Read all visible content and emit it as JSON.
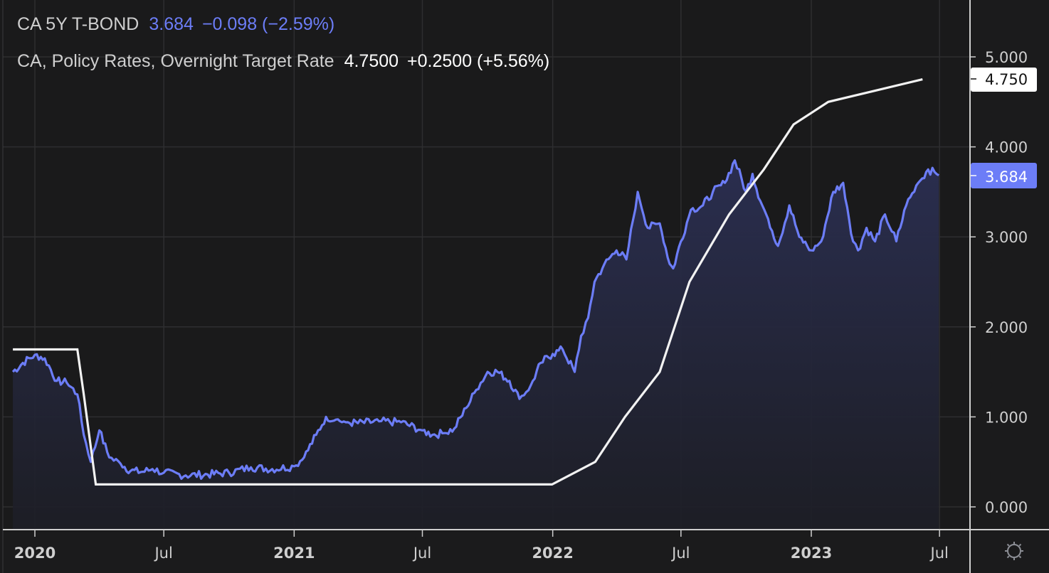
{
  "legend": {
    "bond": {
      "name": "CA 5Y T-BOND",
      "value": "3.684",
      "change": "−0.098 (−2.59%)",
      "color": "#6c7df7"
    },
    "policy": {
      "name": "CA, Policy Rates, Overnight Target Rate",
      "value": "4.7500",
      "change": "+0.2500 (+5.56%)",
      "color": "#ffffff"
    }
  },
  "price_tags": {
    "policy": {
      "label": "4.750",
      "bg": "#ffffff",
      "fg": "#131313"
    },
    "bond": {
      "label": "3.684",
      "bg": "#6c7df7",
      "fg": "#ffffff"
    }
  },
  "y_axis": {
    "ticks": [
      "5.000",
      "4.000",
      "3.000",
      "2.000",
      "1.000",
      "0.000"
    ]
  },
  "x_axis": {
    "ticks": [
      "2020",
      "Jul",
      "2021",
      "Jul",
      "2022",
      "Jul",
      "2023",
      "Jul"
    ]
  },
  "settings_icon": "gear-icon",
  "chart_data": {
    "type": "line",
    "title": "",
    "xlabel": "",
    "ylabel": "",
    "ylim": [
      -0.25,
      5.6
    ],
    "grid": true,
    "legend_position": "top-left",
    "x_ticks": [
      "2020",
      "Jul 2020",
      "2021",
      "Jul 2021",
      "2022",
      "Jul 2022",
      "2023",
      "Jul 2023"
    ],
    "y_ticks": [
      0,
      1,
      2,
      3,
      4,
      5
    ],
    "series": [
      {
        "name": "CA 5Y T-BOND",
        "color": "#6c7df7",
        "style": "area-line",
        "last_value": 3.684,
        "x": [
          "2019-12-01",
          "2019-12-15",
          "2020-01-01",
          "2020-01-15",
          "2020-02-01",
          "2020-02-15",
          "2020-03-01",
          "2020-03-10",
          "2020-03-20",
          "2020-04-01",
          "2020-04-15",
          "2020-05-01",
          "2020-05-15",
          "2020-06-01",
          "2020-06-15",
          "2020-07-01",
          "2020-08-01",
          "2020-09-01",
          "2020-10-01",
          "2020-11-01",
          "2020-12-01",
          "2021-01-01",
          "2021-01-15",
          "2021-02-01",
          "2021-02-15",
          "2021-03-01",
          "2021-03-15",
          "2021-04-01",
          "2021-05-01",
          "2021-06-01",
          "2021-07-01",
          "2021-07-15",
          "2021-08-01",
          "2021-08-15",
          "2021-09-01",
          "2021-09-15",
          "2021-10-01",
          "2021-10-15",
          "2021-11-01",
          "2021-11-15",
          "2021-12-01",
          "2021-12-15",
          "2022-01-01",
          "2022-01-15",
          "2022-02-01",
          "2022-02-10",
          "2022-02-20",
          "2022-03-01",
          "2022-03-15",
          "2022-04-01",
          "2022-04-15",
          "2022-05-01",
          "2022-05-15",
          "2022-06-01",
          "2022-06-15",
          "2022-06-20",
          "2022-07-01",
          "2022-07-15",
          "2022-08-01",
          "2022-08-15",
          "2022-09-01",
          "2022-09-15",
          "2022-10-01",
          "2022-10-10",
          "2022-10-21",
          "2022-11-01",
          "2022-11-15",
          "2022-12-01",
          "2022-12-15",
          "2023-01-01",
          "2023-01-15",
          "2023-02-01",
          "2023-02-15",
          "2023-03-01",
          "2023-03-08",
          "2023-03-20",
          "2023-04-01",
          "2023-04-15",
          "2023-05-01",
          "2023-05-15",
          "2023-06-01",
          "2023-06-15",
          "2023-06-30"
        ],
        "values": [
          1.5,
          1.6,
          1.69,
          1.65,
          1.4,
          1.38,
          1.25,
          0.8,
          0.5,
          0.85,
          0.55,
          0.48,
          0.4,
          0.39,
          0.42,
          0.38,
          0.35,
          0.36,
          0.38,
          0.44,
          0.42,
          0.45,
          0.55,
          0.8,
          1.0,
          0.97,
          0.94,
          0.93,
          0.95,
          0.94,
          0.85,
          0.8,
          0.82,
          0.87,
          1.1,
          1.3,
          1.5,
          1.5,
          1.4,
          1.2,
          1.35,
          1.6,
          1.7,
          1.75,
          1.5,
          1.9,
          2.1,
          2.5,
          2.7,
          2.85,
          2.75,
          3.5,
          3.1,
          3.15,
          2.7,
          2.65,
          2.95,
          3.3,
          3.35,
          3.5,
          3.6,
          3.85,
          3.5,
          3.7,
          3.4,
          3.2,
          2.9,
          3.35,
          3.0,
          2.85,
          2.95,
          3.5,
          3.6,
          2.95,
          2.85,
          3.1,
          2.95,
          3.25,
          2.95,
          3.35,
          3.6,
          3.75,
          3.684
        ]
      },
      {
        "name": "CA, Policy Rates, Overnight Target Rate",
        "color": "#ffffff",
        "style": "line",
        "last_value": 4.75,
        "x": [
          "2019-12-01",
          "2020-03-01",
          "2020-03-10",
          "2020-03-27",
          "2020-04-01",
          "2021-12-31",
          "2022-03-02",
          "2022-04-13",
          "2022-06-01",
          "2022-07-13",
          "2022-09-07",
          "2022-10-26",
          "2022-12-07",
          "2023-01-25",
          "2023-06-07"
        ],
        "values": [
          1.75,
          1.75,
          1.25,
          0.25,
          0.25,
          0.25,
          0.5,
          1.0,
          1.5,
          2.5,
          3.25,
          3.75,
          4.25,
          4.5,
          4.75
        ]
      }
    ]
  }
}
